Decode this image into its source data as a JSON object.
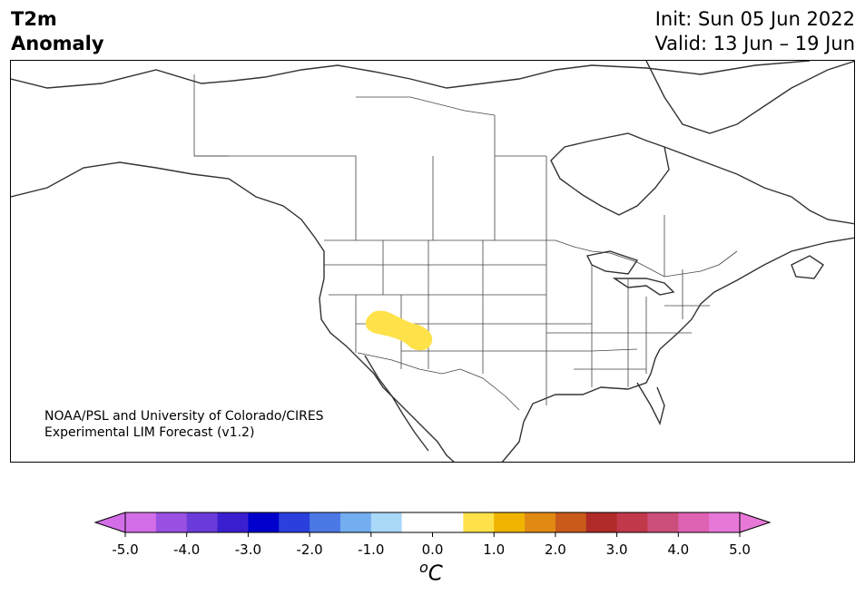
{
  "header": {
    "title_line1": "T2m",
    "title_line2": "Anomaly",
    "init_text": "Init: Sun 05 Jun 2022",
    "valid_text": "Valid: 13 Jun – 19 Jun"
  },
  "map": {
    "credit_line1": "NOAA/PSL and University of Colorado/CIRES",
    "credit_line2": "Experimental LIM Forecast (v1.2)",
    "land_color": "#ffffff",
    "border_color": "#333333",
    "anomaly_color": "#ffe24a"
  },
  "colorbar": {
    "unit": "oC",
    "ticks": [
      "-5.0",
      "-4.0",
      "-3.0",
      "-2.0",
      "-1.0",
      "0.0",
      "1.0",
      "2.0",
      "3.0",
      "4.0",
      "5.0"
    ],
    "colors": [
      "#d36ee8",
      "#9a50e0",
      "#6a3bd8",
      "#3a1fd0",
      "#0000cc",
      "#2a3fdc",
      "#4c78e6",
      "#73aef0",
      "#aad8f8",
      "#ffffff",
      "#ffffff",
      "#ffe24a",
      "#f0b400",
      "#e08a14",
      "#c85a1a",
      "#b02a28",
      "#c0384a",
      "#cc4e7a",
      "#dd62b2",
      "#e878d8"
    ],
    "under_color": "#d36ee8",
    "over_color": "#e878d8"
  }
}
